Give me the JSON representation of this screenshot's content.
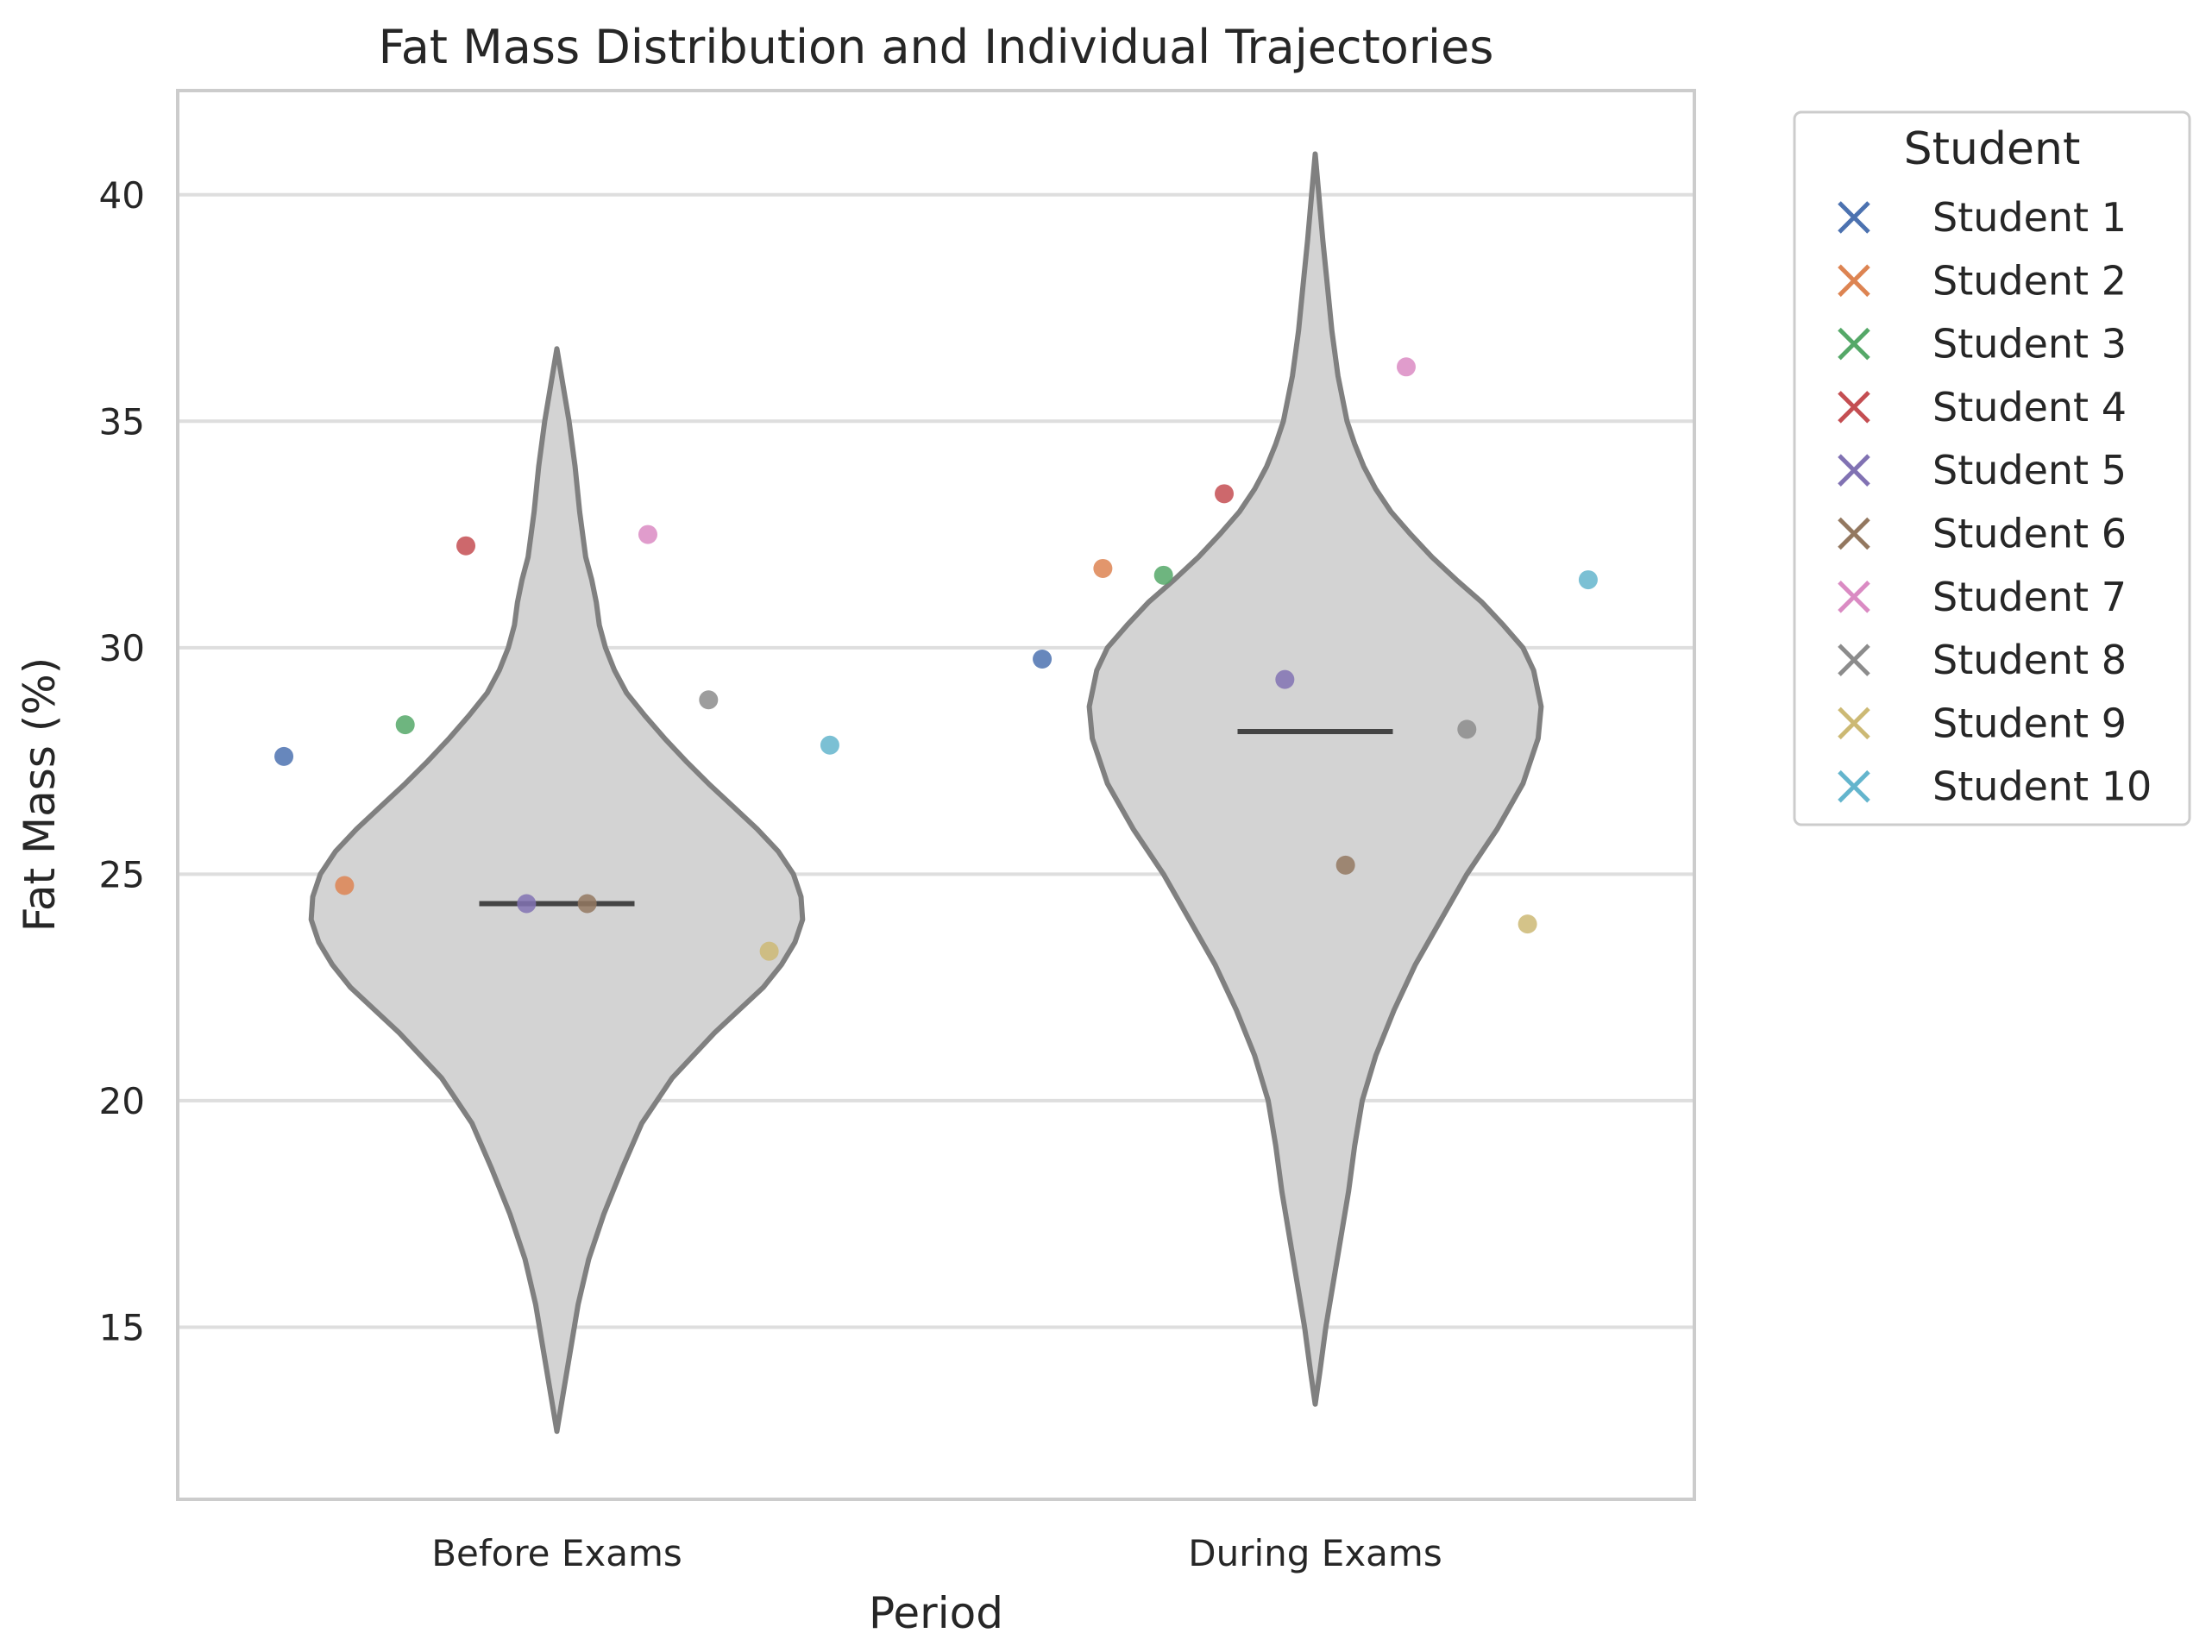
{
  "chart_data": {
    "type": "violin",
    "title": "Fat Mass Distribution and Individual Trajectories",
    "xlabel": "Period",
    "ylabel": "Fat Mass (%)",
    "ylim": [
      11.2,
      42.3
    ],
    "yticks": [
      15,
      20,
      25,
      30,
      35,
      40
    ],
    "categories": [
      "Before Exams",
      "During Exams"
    ],
    "grid": "horizontal",
    "violin_fill": "#d3d3d3",
    "violin_edge": "#808080",
    "medians": [
      24.35,
      28.15
    ],
    "violins": [
      {
        "category": "Before Exams",
        "profile": [
          [
            12.7,
            0.0
          ],
          [
            13.5,
            0.02
          ],
          [
            14.5,
            0.045
          ],
          [
            15.5,
            0.07
          ],
          [
            16.5,
            0.105
          ],
          [
            17.5,
            0.155
          ],
          [
            18.5,
            0.215
          ],
          [
            19.5,
            0.28
          ],
          [
            20.5,
            0.38
          ],
          [
            21.5,
            0.52
          ],
          [
            22.5,
            0.68
          ],
          [
            23.0,
            0.74
          ],
          [
            23.5,
            0.785
          ],
          [
            24.0,
            0.81
          ],
          [
            24.5,
            0.805
          ],
          [
            25.0,
            0.78
          ],
          [
            25.5,
            0.73
          ],
          [
            26.0,
            0.66
          ],
          [
            26.5,
            0.58
          ],
          [
            27.0,
            0.5
          ],
          [
            27.5,
            0.425
          ],
          [
            28.0,
            0.355
          ],
          [
            28.5,
            0.29
          ],
          [
            29.0,
            0.23
          ],
          [
            29.5,
            0.19
          ],
          [
            30.0,
            0.16
          ],
          [
            30.5,
            0.14
          ],
          [
            31.0,
            0.13
          ],
          [
            31.5,
            0.115
          ],
          [
            32.0,
            0.095
          ],
          [
            33.0,
            0.075
          ],
          [
            34.0,
            0.06
          ],
          [
            35.0,
            0.04
          ],
          [
            36.0,
            0.015
          ],
          [
            36.6,
            0.0
          ]
        ]
      },
      {
        "category": "During Exams",
        "profile": [
          [
            13.3,
            0.0
          ],
          [
            14.0,
            0.015
          ],
          [
            15.0,
            0.035
          ],
          [
            16.0,
            0.06
          ],
          [
            17.0,
            0.085
          ],
          [
            18.0,
            0.11
          ],
          [
            19.0,
            0.13
          ],
          [
            20.0,
            0.155
          ],
          [
            21.0,
            0.2
          ],
          [
            22.0,
            0.26
          ],
          [
            23.0,
            0.33
          ],
          [
            24.0,
            0.415
          ],
          [
            25.0,
            0.5
          ],
          [
            26.0,
            0.6
          ],
          [
            27.0,
            0.685
          ],
          [
            28.0,
            0.735
          ],
          [
            28.7,
            0.745
          ],
          [
            29.5,
            0.72
          ],
          [
            30.0,
            0.685
          ],
          [
            30.5,
            0.62
          ],
          [
            31.0,
            0.55
          ],
          [
            31.5,
            0.465
          ],
          [
            32.0,
            0.385
          ],
          [
            32.5,
            0.315
          ],
          [
            33.0,
            0.25
          ],
          [
            33.5,
            0.2
          ],
          [
            34.0,
            0.16
          ],
          [
            34.5,
            0.13
          ],
          [
            35.0,
            0.105
          ],
          [
            36.0,
            0.075
          ],
          [
            37.0,
            0.055
          ],
          [
            38.0,
            0.04
          ],
          [
            39.0,
            0.025
          ],
          [
            40.0,
            0.012
          ],
          [
            40.9,
            0.0
          ]
        ]
      }
    ],
    "series": [
      {
        "name": "Student 1",
        "color": "#4c72b0",
        "values": [
          27.6,
          29.75
        ]
      },
      {
        "name": "Student 2",
        "color": "#dd8452",
        "values": [
          24.75,
          31.75
        ]
      },
      {
        "name": "Student 3",
        "color": "#55a868",
        "values": [
          28.3,
          31.6
        ]
      },
      {
        "name": "Student 4",
        "color": "#c44e52",
        "values": [
          32.25,
          33.4
        ]
      },
      {
        "name": "Student 5",
        "color": "#8172b3",
        "values": [
          24.35,
          29.3
        ]
      },
      {
        "name": "Student 6",
        "color": "#937860",
        "values": [
          24.35,
          25.2
        ]
      },
      {
        "name": "Student 7",
        "color": "#da8bc3",
        "values": [
          32.5,
          36.2
        ]
      },
      {
        "name": "Student 8",
        "color": "#8c8c8c",
        "values": [
          28.85,
          28.2
        ]
      },
      {
        "name": "Student 9",
        "color": "#ccb974",
        "values": [
          23.3,
          23.9
        ]
      },
      {
        "name": "Student 10",
        "color": "#64b5cd",
        "values": [
          27.85,
          31.5
        ]
      }
    ],
    "legend": {
      "title": "Student",
      "placement": "upper-right-outside",
      "marker": "x"
    }
  }
}
